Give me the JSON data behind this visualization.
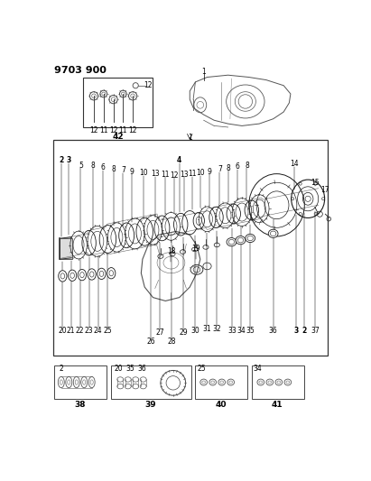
{
  "title_code": "9703 900",
  "bg_color": "#ffffff",
  "text_color": "#000000",
  "fig_width": 4.11,
  "fig_height": 5.33,
  "dpi": 100,
  "lc": "#1a1a1a",
  "lw": 0.6,
  "top_labels_42": [
    "12",
    "11",
    "12",
    "11",
    "12"
  ],
  "bottom_label_42": "42",
  "bottom_label_1": "1",
  "main_labels_top": [
    [
      "2",
      20,
      148
    ],
    [
      "3",
      31,
      148
    ],
    [
      "5",
      48,
      155
    ],
    [
      "8",
      66,
      155
    ],
    [
      "6",
      80,
      158
    ],
    [
      "8",
      96,
      160
    ],
    [
      "7",
      109,
      162
    ],
    [
      "9",
      122,
      164
    ],
    [
      "10",
      139,
      166
    ],
    [
      "13",
      155,
      167
    ],
    [
      "11",
      169,
      168
    ],
    [
      "12",
      182,
      169
    ],
    [
      "4",
      190,
      148
    ],
    [
      "13",
      197,
      168
    ],
    [
      "11",
      208,
      167
    ],
    [
      "10",
      220,
      166
    ],
    [
      "9",
      233,
      164
    ],
    [
      "7",
      248,
      161
    ],
    [
      "8",
      261,
      159
    ],
    [
      "6",
      273,
      157
    ],
    [
      "8",
      287,
      155
    ],
    [
      "14",
      355,
      153
    ],
    [
      "15",
      385,
      180
    ],
    [
      "17",
      399,
      190
    ]
  ],
  "main_labels_mid": [
    [
      "18",
      178,
      278
    ],
    [
      "19",
      214,
      275
    ]
  ],
  "main_labels_bot": [
    [
      "20",
      22,
      393
    ],
    [
      "21",
      34,
      393
    ],
    [
      "22",
      47,
      393
    ],
    [
      "23",
      60,
      393
    ],
    [
      "24",
      73,
      393
    ],
    [
      "25",
      87,
      393
    ],
    [
      "27",
      162,
      395
    ],
    [
      "26",
      149,
      409
    ],
    [
      "28",
      179,
      409
    ],
    [
      "29",
      196,
      395
    ],
    [
      "30",
      213,
      393
    ],
    [
      "31",
      229,
      390
    ],
    [
      "32",
      244,
      390
    ],
    [
      "33",
      266,
      393
    ],
    [
      "34",
      279,
      393
    ],
    [
      "35",
      292,
      393
    ],
    [
      "36",
      325,
      393
    ],
    [
      "3",
      358,
      393
    ],
    [
      "2",
      370,
      393
    ],
    [
      "37",
      385,
      393
    ]
  ],
  "inset_labels": [
    [
      "2",
      22,
      447
    ],
    [
      "38",
      48,
      497
    ],
    [
      "20",
      102,
      447
    ],
    [
      "35",
      119,
      447
    ],
    [
      "36",
      136,
      447
    ],
    [
      "39",
      152,
      497
    ],
    [
      "25",
      223,
      447
    ],
    [
      "40",
      248,
      497
    ],
    [
      "34",
      304,
      447
    ],
    [
      "41",
      330,
      497
    ]
  ]
}
